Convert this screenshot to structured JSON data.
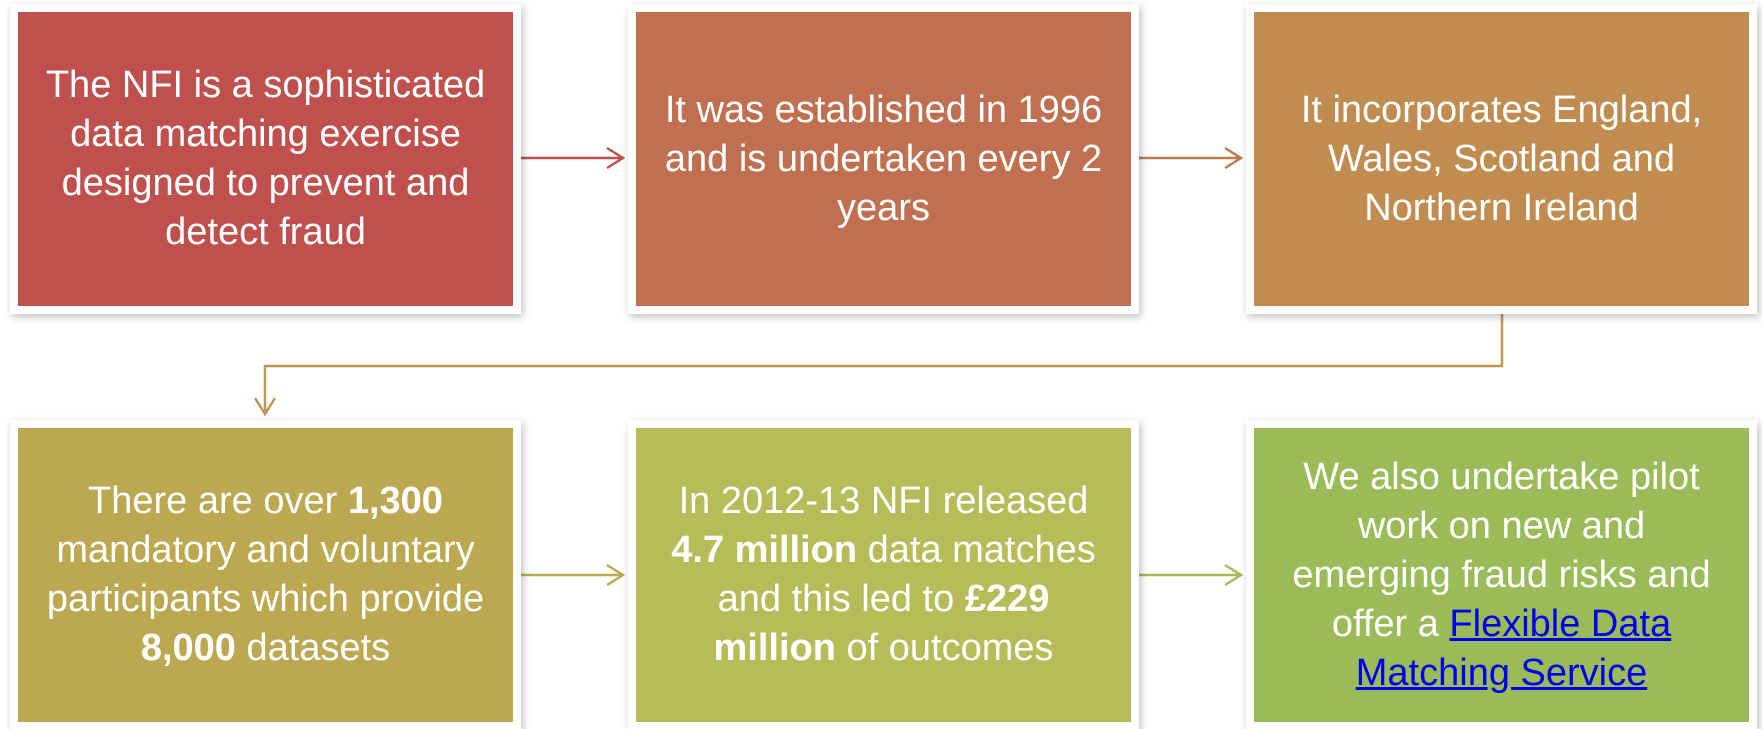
{
  "nodes": [
    {
      "parts": [
        "The NFI is a sophisticated data matching exercise designed to prevent and detect fraud"
      ]
    },
    {
      "parts": [
        "It was established in 1996 and is undertaken every 2 years"
      ]
    },
    {
      "parts": [
        "It incorporates England, Wales, Scotland and Northern Ireland"
      ]
    },
    {
      "parts": [
        "There are over ",
        "1,300",
        " mandatory and voluntary participants which provide ",
        "8,000",
        " datasets"
      ]
    },
    {
      "parts": [
        "In 2012-13 NFI released ",
        "4.7 million",
        " data matches and this led to ",
        "£229 million",
        " of outcomes"
      ]
    },
    {
      "parts": [
        "We also undertake pilot work on new and emerging fraud risks and offer a ",
        "Flexible Data Matching Service"
      ]
    }
  ]
}
